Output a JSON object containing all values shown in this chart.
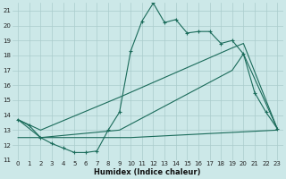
{
  "bg_color": "#cce8e8",
  "grid_color": "#aacccc",
  "line_color": "#1a6b5a",
  "xlabel": "Humidex (Indice chaleur)",
  "xlim": [
    -0.5,
    23.5
  ],
  "ylim": [
    11,
    21.5
  ],
  "yticks": [
    11,
    12,
    13,
    14,
    15,
    16,
    17,
    18,
    19,
    20,
    21
  ],
  "xticks": [
    0,
    1,
    2,
    3,
    4,
    5,
    6,
    7,
    8,
    9,
    10,
    11,
    12,
    13,
    14,
    15,
    16,
    17,
    18,
    19,
    20,
    21,
    22,
    23
  ],
  "line1_x": [
    0,
    1,
    2,
    3,
    4,
    5,
    6,
    7,
    8,
    9,
    10,
    11,
    12,
    13,
    14,
    15,
    16,
    17,
    18,
    19,
    20,
    21,
    22,
    23
  ],
  "line1_y": [
    13.7,
    13.3,
    12.5,
    12.1,
    11.8,
    11.5,
    11.5,
    11.6,
    13.0,
    14.2,
    18.3,
    20.3,
    21.5,
    20.2,
    20.4,
    19.5,
    19.6,
    19.6,
    18.8,
    19.0,
    18.1,
    15.5,
    14.2,
    13.1
  ],
  "line2_x": [
    0,
    2,
    9,
    19,
    20,
    23
  ],
  "line2_y": [
    13.7,
    13.0,
    15.2,
    18.5,
    18.8,
    13.1
  ],
  "line3_x": [
    0,
    2,
    9,
    19,
    20,
    23
  ],
  "line3_y": [
    13.7,
    12.5,
    13.0,
    17.0,
    18.1,
    13.1
  ],
  "line4_x": [
    0,
    10,
    23
  ],
  "line4_y": [
    12.5,
    12.5,
    13.0
  ]
}
